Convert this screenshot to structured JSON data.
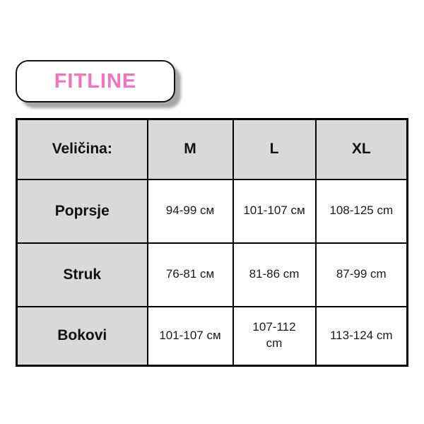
{
  "brand": {
    "label": "FITLINE",
    "text_color": "#f173c1",
    "badge_background": "#ffffff",
    "badge_border_color": "#111111",
    "shadow_color": "#a6a6a6"
  },
  "table": {
    "header": {
      "size_label": "Veličina:",
      "m": "M",
      "l": "L",
      "xl": "XL"
    },
    "rows": [
      {
        "label": "Poprsje",
        "m": "94-99 см",
        "l": "101-107 см",
        "xl": "108-125 cm"
      },
      {
        "label": "Struk",
        "m": "76-81 см",
        "l": "81-86 cm",
        "xl": "87-99 cm"
      },
      {
        "label": "Bokovi",
        "m": "101-107 см",
        "l": "107-112\ncm",
        "xl": "113-124 cm"
      }
    ],
    "colors": {
      "header_background": "#d9d9d9",
      "label_background": "#d9d9d9",
      "value_background": "#ffffff",
      "border_color": "#000000"
    }
  },
  "chart_data": {
    "type": "table",
    "title": "FITLINE",
    "columns": [
      "Veličina:",
      "M",
      "L",
      "XL"
    ],
    "rows": [
      [
        "Poprsje",
        "94-99 см",
        "101-107 см",
        "108-125 cm"
      ],
      [
        "Struk",
        "76-81 см",
        "81-86 cm",
        "87-99 cm"
      ],
      [
        "Bokovi",
        "101-107 см",
        "107-112 cm",
        "113-124 cm"
      ]
    ],
    "layout_hints": {
      "header_row_shaded": true,
      "label_column_shaded": true,
      "grid": true
    }
  }
}
